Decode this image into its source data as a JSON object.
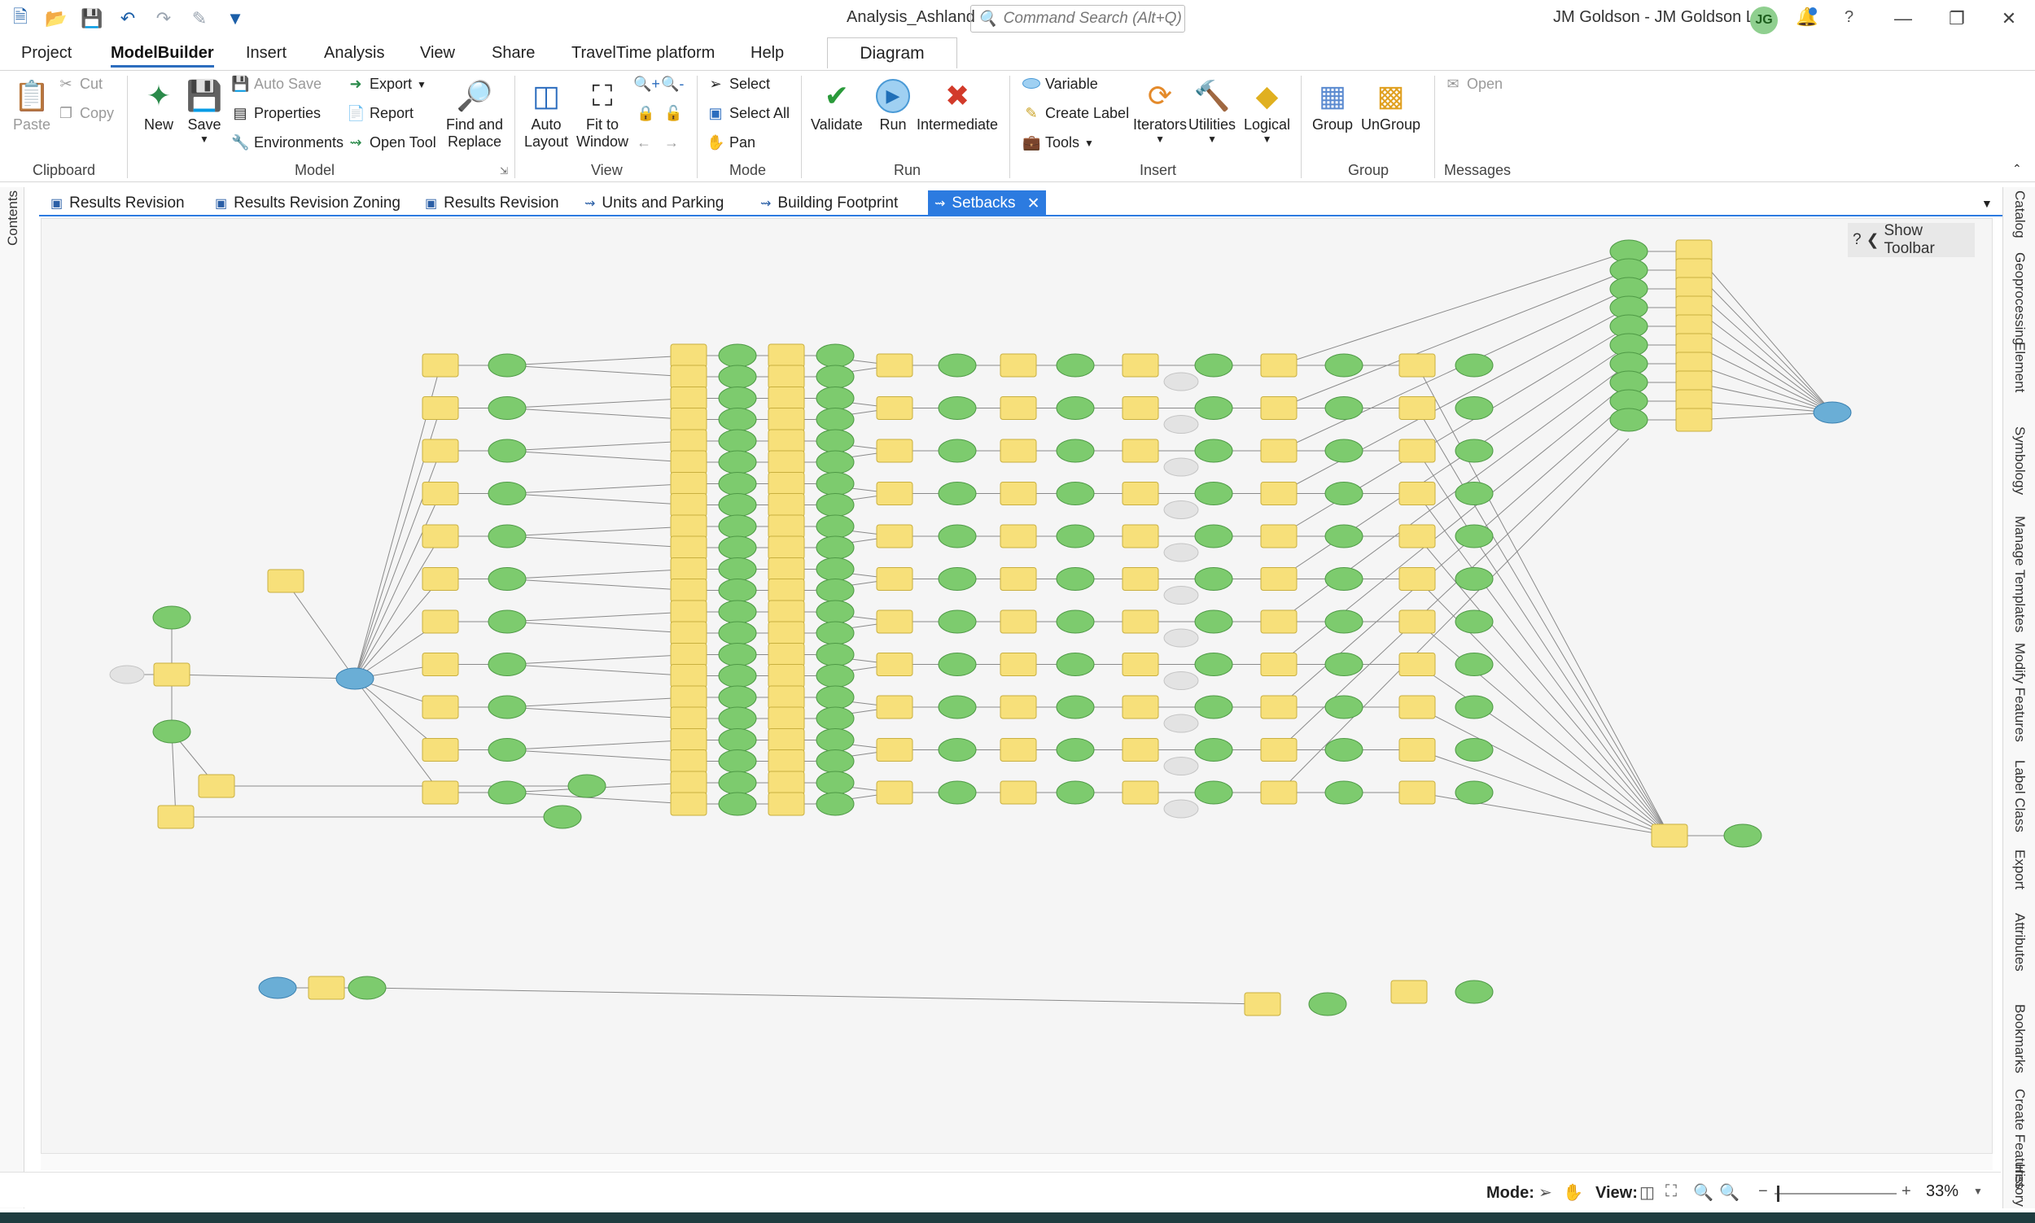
{
  "window": {
    "title": "Analysis_Ashland",
    "search_placeholder": "Command Search (Alt+Q)",
    "user": "JM Goldson - JM Goldson LLC",
    "avatar_initials": "JG"
  },
  "ribbon_tabs": [
    "Project",
    "ModelBuilder",
    "Insert",
    "Analysis",
    "View",
    "Share",
    "TravelTime platform",
    "Help",
    "Diagram"
  ],
  "ribbon": {
    "clipboard": {
      "label": "Clipboard",
      "paste": "Paste",
      "cut": "Cut",
      "copy": "Copy"
    },
    "model": {
      "label": "Model",
      "new": "New",
      "save": "Save",
      "auto_save": "Auto Save",
      "properties": "Properties",
      "environments": "Environments",
      "export": "Export",
      "report": "Report",
      "open_tool": "Open Tool",
      "find_replace": "Find and\nReplace"
    },
    "view": {
      "label": "View",
      "auto_layout": "Auto\nLayout",
      "fit_window": "Fit to\nWindow"
    },
    "mode": {
      "label": "Mode",
      "select": "Select",
      "select_all": "Select All",
      "pan": "Pan"
    },
    "run": {
      "label": "Run",
      "validate": "Validate",
      "run": "Run",
      "intermediate": "Intermediate"
    },
    "insert": {
      "label": "Insert",
      "variable": "Variable",
      "create_label": "Create Label",
      "tools": "Tools",
      "iterators": "Iterators",
      "utilities": "Utilities",
      "logical": "Logical"
    },
    "group": {
      "label": "Group",
      "group": "Group",
      "ungroup": "UnGroup"
    },
    "messages": {
      "label": "Messages",
      "open": "Open"
    }
  },
  "doc_tabs": [
    "Results Revision",
    "Results Revision Zoning",
    "Results Revision",
    "Units and Parking",
    "Building Footprint",
    "Setbacks"
  ],
  "active_doc_tab": "Setbacks",
  "left_dock": [
    "Contents"
  ],
  "right_dock": [
    "Catalog",
    "Geoprocessing",
    "Element",
    "Symbology",
    "Manage Templates",
    "Modify Features",
    "Label Class",
    "Export",
    "Attributes",
    "Bookmarks",
    "Create Features",
    "History"
  ],
  "canvas": {
    "show_toolbar": "Show Toolbar"
  },
  "status": {
    "mode_label": "Mode:",
    "view_label": "View:",
    "zoom": "33%"
  },
  "colors": {
    "tool": "#f7e07a",
    "tool_border": "#c9b040",
    "data": "#7dcb6e",
    "data_border": "#4f9a46",
    "input": "#6aaed6",
    "output_grey": "#e3e3e3",
    "accent": "#2c7be0"
  }
}
